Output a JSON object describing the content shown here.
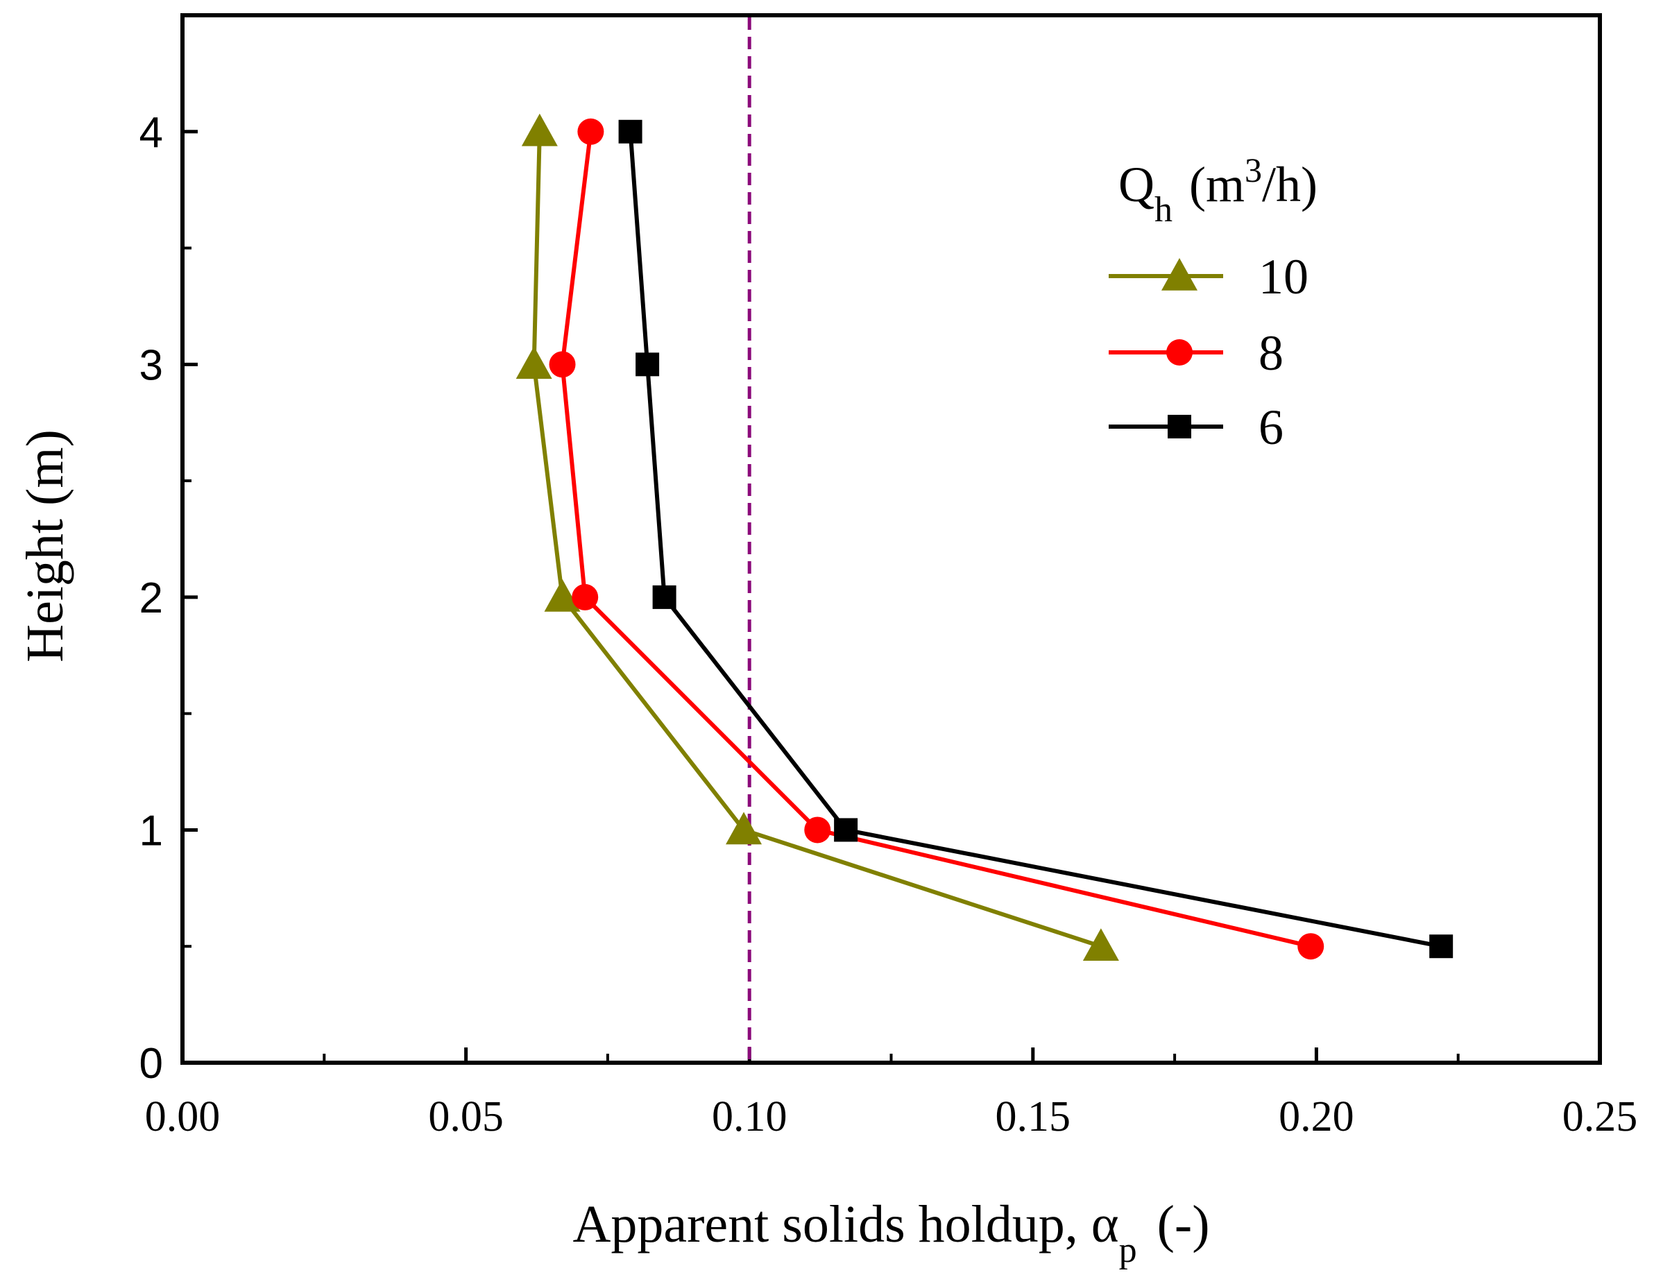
{
  "chart_data": {
    "type": "line",
    "xlabel": {
      "main": "Apparent solids holdup, α",
      "subscript": "p",
      "suffix": " (-)"
    },
    "ylabel": "Height (m)",
    "xlim": [
      0,
      0.25
    ],
    "ylim": [
      0,
      4.5
    ],
    "xticks": [
      "0.00",
      "0.05",
      "0.10",
      "0.15",
      "0.20",
      "0.25"
    ],
    "yticks": [
      "0",
      "1",
      "2",
      "3",
      "4"
    ],
    "reference_line": {
      "x": 0.1,
      "style": "dashed",
      "color": "#8b0a7a"
    },
    "legend": {
      "title_main": "Q",
      "title_sub": "h",
      "title_unit_pre": " (m",
      "title_unit_sup": "3",
      "title_unit_post": "/h)",
      "placement": "top-right"
    },
    "series": [
      {
        "name": "10",
        "color": "#808000",
        "marker": "triangle",
        "points": [
          [
            0.063,
            4.0
          ],
          [
            0.062,
            3.0
          ],
          [
            0.067,
            2.0
          ],
          [
            0.099,
            1.0
          ],
          [
            0.162,
            0.5
          ]
        ]
      },
      {
        "name": "8",
        "color": "#ff0000",
        "marker": "circle",
        "points": [
          [
            0.072,
            4.0
          ],
          [
            0.067,
            3.0
          ],
          [
            0.071,
            2.0
          ],
          [
            0.112,
            1.0
          ],
          [
            0.199,
            0.5
          ]
        ]
      },
      {
        "name": "6",
        "color": "#000000",
        "marker": "square",
        "points": [
          [
            0.079,
            4.0
          ],
          [
            0.082,
            3.0
          ],
          [
            0.085,
            2.0
          ],
          [
            0.117,
            1.0
          ],
          [
            0.222,
            0.5
          ]
        ]
      }
    ]
  }
}
